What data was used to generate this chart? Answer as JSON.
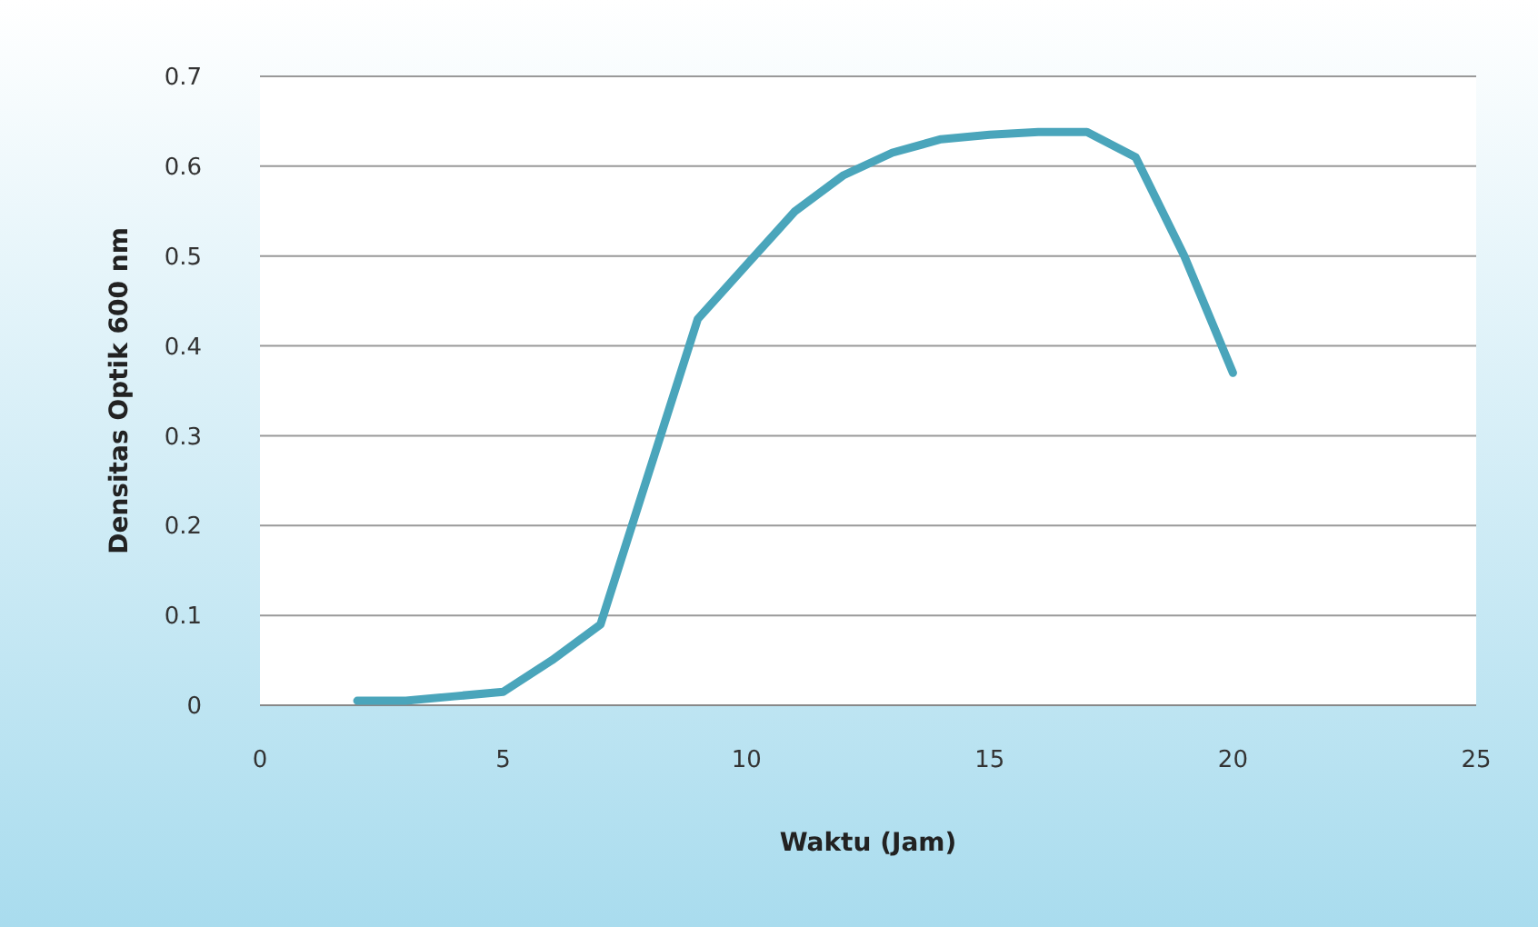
{
  "chart_data": {
    "type": "line",
    "xlabel": "Waktu (Jam)",
    "ylabel": "Densitas Optik 600 nm",
    "x": [
      2,
      3,
      4,
      5,
      6,
      7,
      8,
      9,
      10,
      11,
      12,
      13,
      14,
      15,
      16,
      17,
      18,
      19,
      20
    ],
    "series": [
      {
        "color": "#4aa5bb",
        "values": [
          0.005,
          0.005,
          0.01,
          0.015,
          0.05,
          0.09,
          0.26,
          0.43,
          0.49,
          0.55,
          0.59,
          0.615,
          0.63,
          0.635,
          0.638,
          0.638,
          0.61,
          0.5,
          0.37
        ]
      }
    ],
    "xlim": [
      0,
      25
    ],
    "xticks": [
      0,
      5,
      10,
      15,
      20,
      25
    ],
    "ylim": [
      0,
      0.7
    ],
    "yticks": [
      0,
      0.1,
      0.2,
      0.3,
      0.4,
      0.5,
      0.6,
      0.7
    ],
    "grid": "y",
    "marker": "none",
    "line_style": "solid"
  }
}
